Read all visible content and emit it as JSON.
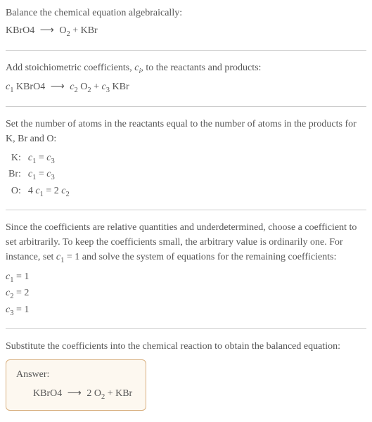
{
  "section1": {
    "title": "Balance the chemical equation algebraically:",
    "equation_parts": {
      "reactant": "KBrO4",
      "arrow": "⟶",
      "product1": "O",
      "product1_sub": "2",
      "plus": " + ",
      "product2": "KBr"
    }
  },
  "section2": {
    "title_prefix": "Add stoichiometric coefficients, ",
    "title_var": "c",
    "title_var_sub": "i",
    "title_suffix": ", to the reactants and products:",
    "eq": {
      "c1": "c",
      "c1_sub": "1",
      "r1": " KBrO4",
      "arrow": "⟶",
      "c2": "c",
      "c2_sub": "2",
      "p1": " O",
      "p1_sub": "2",
      "plus": " + ",
      "c3": "c",
      "c3_sub": "3",
      "p2": " KBr"
    }
  },
  "section3": {
    "title": "Set the number of atoms in the reactants equal to the number of atoms in the products for K, Br and O:",
    "rows": [
      {
        "label": "K:",
        "lhs_c": "c",
        "lhs_sub": "1",
        "eq": " = ",
        "rhs_c": "c",
        "rhs_sub": "3",
        "lhs_coeff": "",
        "rhs_coeff": ""
      },
      {
        "label": "Br:",
        "lhs_c": "c",
        "lhs_sub": "1",
        "eq": " = ",
        "rhs_c": "c",
        "rhs_sub": "3",
        "lhs_coeff": "",
        "rhs_coeff": ""
      },
      {
        "label": "O:",
        "lhs_c": "c",
        "lhs_sub": "1",
        "eq": " = ",
        "rhs_c": "c",
        "rhs_sub": "2",
        "lhs_coeff": "4 ",
        "rhs_coeff": "2 "
      }
    ]
  },
  "section4": {
    "para_prefix": "Since the coefficients are relative quantities and underdetermined, choose a coefficient to set arbitrarily. To keep the coefficients small, the arbitrary value is ordinarily one. For instance, set ",
    "var": "c",
    "var_sub": "1",
    "para_mid": " = 1 and solve the system of equations for the remaining coefficients:",
    "coeffs": [
      {
        "c": "c",
        "sub": "1",
        "val": " = 1"
      },
      {
        "c": "c",
        "sub": "2",
        "val": " = 2"
      },
      {
        "c": "c",
        "sub": "3",
        "val": " = 1"
      }
    ]
  },
  "section5": {
    "title": "Substitute the coefficients into the chemical reaction to obtain the balanced equation:",
    "answer_label": "Answer:",
    "eq": {
      "r1": "KBrO4",
      "arrow": "⟶",
      "coeff": "2 ",
      "p1": "O",
      "p1_sub": "2",
      "plus": " + ",
      "p2": "KBr"
    }
  },
  "colors": {
    "text": "#555555",
    "divider": "#cccccc",
    "box_border": "#d8b080",
    "box_bg": "#fdf8f0"
  }
}
